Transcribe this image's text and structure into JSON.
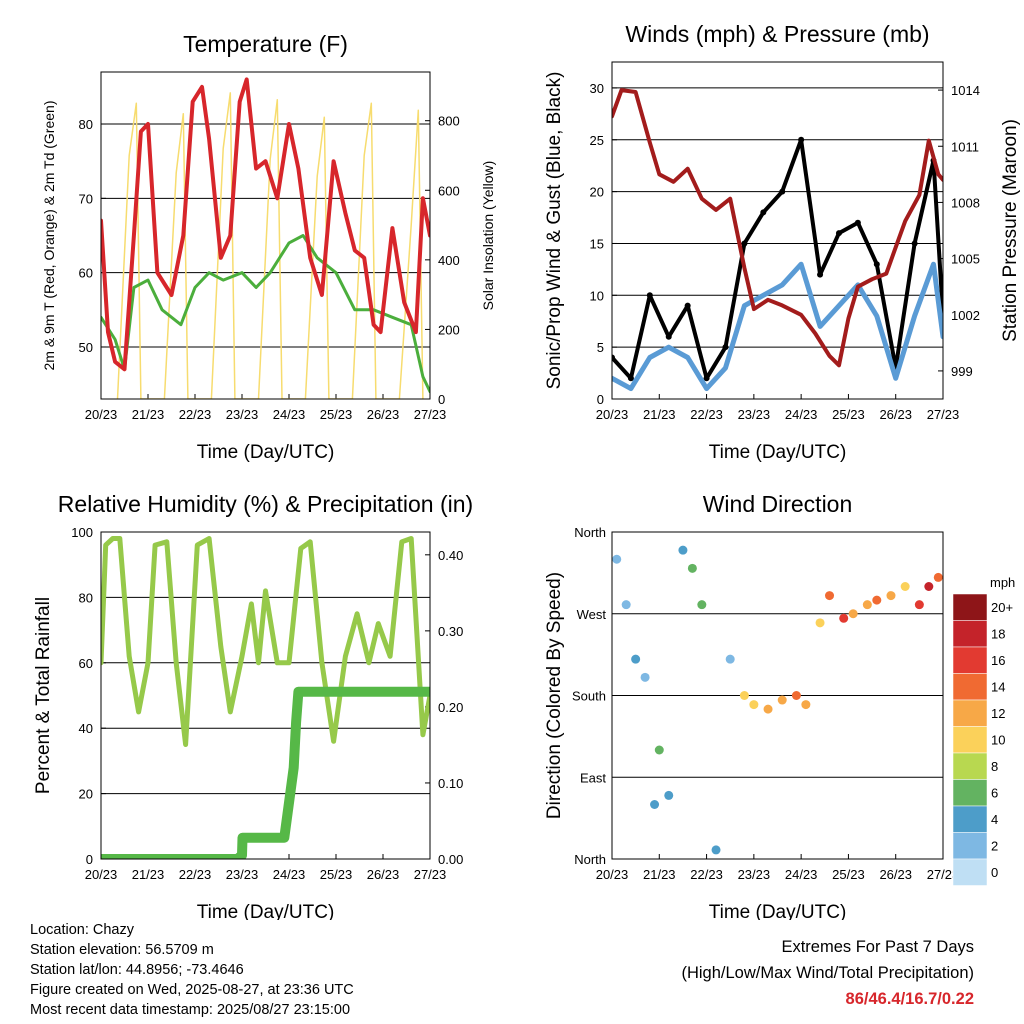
{
  "colors": {
    "temp_red": "#d7262b",
    "temp_orange": "#f4a142",
    "dewpoint_green": "#4bae3c",
    "solar_yellow": "#f7dc6f",
    "wind_blue": "#5a9bd5",
    "gust_black": "#000000",
    "pressure_maroon": "#a31c1c",
    "rh_green": "#96c94a",
    "precip_green": "#56b847",
    "extremes_red": "#d7262b"
  },
  "x_ticks": [
    "20/23",
    "21/23",
    "22/23",
    "23/23",
    "24/23",
    "25/23",
    "26/23",
    "27/23"
  ],
  "chart_data": [
    {
      "type": "line",
      "title": "Temperature (F)",
      "xlabel": "Time (Day/UTC)",
      "ylabel": "2m & 9m T (Red, Orange) & 2m Td (Green)",
      "y2label": "Solar Insolation (Yellow)",
      "ylim": [
        43,
        87
      ],
      "y2lim": [
        0,
        940
      ],
      "yticks": [
        50,
        60,
        70,
        80
      ],
      "y2ticks": [
        0,
        200,
        400,
        600,
        800
      ],
      "grid": true,
      "series": [
        {
          "key": "t2m",
          "color": "#d7262b",
          "x": [
            0,
            0.15,
            0.3,
            0.5,
            0.7,
            0.85,
            1.0,
            1.2,
            1.5,
            1.75,
            1.95,
            2.15,
            2.3,
            2.55,
            2.75,
            2.95,
            3.1,
            3.3,
            3.5,
            3.75,
            4.0,
            4.2,
            4.45,
            4.7,
            4.95,
            5.2,
            5.4,
            5.6,
            5.8,
            5.95,
            6.2,
            6.45,
            6.7,
            6.85,
            7.0
          ],
          "values": [
            67,
            52,
            48,
            47,
            65,
            79,
            80,
            60,
            57,
            65,
            83,
            85,
            78,
            62,
            65,
            83,
            86,
            74,
            75,
            70,
            80,
            74,
            62,
            57,
            75,
            68,
            63,
            62,
            53,
            52,
            66,
            56,
            52,
            70,
            65
          ]
        },
        {
          "key": "dewpoint",
          "color": "#4bae3c",
          "x": [
            0,
            0.3,
            0.5,
            0.7,
            1.0,
            1.3,
            1.7,
            2.0,
            2.3,
            2.6,
            3.0,
            3.3,
            3.6,
            4.0,
            4.3,
            4.6,
            5.0,
            5.4,
            5.8,
            6.2,
            6.6,
            6.85,
            7.0
          ],
          "values": [
            54,
            51,
            47,
            58,
            59,
            55,
            53,
            58,
            60,
            59,
            60,
            58,
            60,
            64,
            65,
            62,
            60,
            55,
            55,
            54,
            53,
            46,
            44
          ]
        },
        {
          "key": "solar",
          "axis": "y2",
          "color": "#f7dc6f",
          "x": [
            0.35,
            0.6,
            0.75,
            0.85,
            1.35,
            1.6,
            1.75,
            1.85,
            2.35,
            2.6,
            2.75,
            2.85,
            3.35,
            3.6,
            3.75,
            3.85,
            4.35,
            4.6,
            4.75,
            4.85,
            5.35,
            5.6,
            5.75,
            5.85,
            6.35,
            6.6,
            6.75,
            6.85
          ],
          "values": [
            0,
            700,
            850,
            0,
            0,
            650,
            820,
            0,
            0,
            720,
            880,
            0,
            0,
            690,
            860,
            0,
            0,
            640,
            810,
            0,
            0,
            700,
            850,
            0,
            0,
            500,
            830,
            0
          ]
        }
      ]
    },
    {
      "type": "line",
      "title": "Winds (mph) & Pressure (mb)",
      "xlabel": "Time (Day/UTC)",
      "ylabel": "Sonic/Prop Wind & Gust (Blue, Black)",
      "y2label": "Station Pressure (Maroon)",
      "ylim": [
        0,
        32.5
      ],
      "y2lim": [
        997.5,
        1015.5
      ],
      "yticks": [
        0,
        5,
        10,
        15,
        20,
        25,
        30
      ],
      "y2ticks": [
        999,
        1002,
        1005,
        1008,
        1011,
        1014
      ],
      "grid": true,
      "series": [
        {
          "key": "wind",
          "color": "#5a9bd5",
          "x": [
            0,
            0.4,
            0.8,
            1.2,
            1.6,
            2.0,
            2.4,
            2.8,
            3.2,
            3.6,
            4.0,
            4.4,
            4.8,
            5.2,
            5.6,
            6.0,
            6.4,
            6.8,
            7.0
          ],
          "values": [
            2,
            1,
            4,
            5,
            4,
            1,
            3,
            9,
            10,
            11,
            13,
            7,
            9,
            11,
            8,
            2,
            8,
            13,
            6
          ]
        },
        {
          "key": "gust",
          "color": "#000000",
          "x": [
            0,
            0.4,
            0.8,
            1.2,
            1.6,
            2.0,
            2.4,
            2.8,
            3.2,
            3.6,
            4.0,
            4.4,
            4.8,
            5.2,
            5.6,
            6.0,
            6.4,
            6.8,
            7.0
          ],
          "values": [
            4,
            2,
            10,
            6,
            9,
            2,
            5,
            15,
            18,
            20,
            25,
            12,
            16,
            17,
            13,
            3,
            15,
            23,
            8
          ]
        },
        {
          "key": "pressure",
          "axis": "y2",
          "color": "#a31c1c",
          "x": [
            0,
            0.2,
            0.5,
            0.8,
            1.0,
            1.3,
            1.6,
            1.9,
            2.2,
            2.5,
            2.8,
            3.0,
            3.3,
            3.6,
            4.0,
            4.3,
            4.6,
            4.8,
            5.0,
            5.2,
            5.5,
            5.8,
            6.0,
            6.2,
            6.5,
            6.7,
            6.9,
            7.0
          ],
          "values": [
            1012.6,
            1014,
            1013.9,
            1011.2,
            1009.5,
            1009.1,
            1009.8,
            1008.2,
            1007.6,
            1008.2,
            1004.5,
            1002.3,
            1002.8,
            1002.5,
            1002.0,
            1001.0,
            999.8,
            999.3,
            1001.8,
            1003.5,
            1003.9,
            1004.2,
            1005.6,
            1007.0,
            1008.4,
            1011.3,
            1009.5,
            1009.2
          ]
        }
      ]
    },
    {
      "type": "line",
      "title": "Relative Humidity (%) & Precipitation (in)",
      "xlabel": "Time (Day/UTC)",
      "ylabel": "Percent & Total Rainfall",
      "ylim": [
        0,
        100
      ],
      "y2lim": [
        0,
        0.43
      ],
      "yticks": [
        0,
        20,
        40,
        60,
        80,
        100
      ],
      "y2ticks": [
        "0.00",
        "0.10",
        "0.20",
        "0.30",
        "0.40"
      ],
      "grid": true,
      "series": [
        {
          "key": "rh",
          "color": "#96c94a",
          "x": [
            0,
            0.1,
            0.25,
            0.4,
            0.6,
            0.8,
            1.0,
            1.15,
            1.4,
            1.6,
            1.8,
            2.05,
            2.3,
            2.55,
            2.75,
            3.0,
            3.2,
            3.35,
            3.5,
            3.75,
            4.0,
            4.25,
            4.45,
            4.7,
            4.95,
            5.2,
            5.45,
            5.7,
            5.9,
            6.15,
            6.4,
            6.6,
            6.85,
            7.0
          ],
          "values": [
            60,
            96,
            98,
            98,
            62,
            45,
            60,
            96,
            97,
            60,
            35,
            96,
            98,
            65,
            45,
            62,
            78,
            60,
            82,
            60,
            60,
            95,
            97,
            60,
            36,
            62,
            75,
            60,
            72,
            62,
            97,
            98,
            38,
            50
          ]
        },
        {
          "key": "precip",
          "axis": "y2",
          "color": "#56b847",
          "x": [
            0,
            2.9,
            3.0,
            3.01,
            3.9,
            4.1,
            4.15,
            4.2,
            7.0
          ],
          "values": [
            0,
            0,
            0.005,
            0.028,
            0.028,
            0.12,
            0.18,
            0.22,
            0.22
          ]
        }
      ]
    },
    {
      "type": "scatter",
      "title": "Wind Direction",
      "xlabel": "Time (Day/UTC)",
      "ylabel": "Direction (Colored By Speed)",
      "ylim": [
        0,
        360
      ],
      "yticklabels": [
        "North",
        "East",
        "South",
        "West",
        "North"
      ],
      "grid": true,
      "legend": "right",
      "legend_title": "mph",
      "colorbar_labels": [
        "20+",
        "18",
        "16",
        "14",
        "12",
        "10",
        "8",
        "6",
        "4",
        "2",
        "0"
      ],
      "colorbar_colors": [
        "#8e1518",
        "#c4232a",
        "#e23a31",
        "#f06a32",
        "#f7a847",
        "#fbd15a",
        "#b8d850",
        "#63b361",
        "#4d9dc9",
        "#7eb8e3",
        "#bfdff4"
      ],
      "series": [
        {
          "key": "dir",
          "x": [
            0.1,
            0.3,
            0.5,
            0.7,
            0.9,
            1.0,
            1.2,
            1.5,
            1.7,
            1.9,
            2.2,
            2.5,
            2.8,
            3.0,
            3.3,
            3.6,
            3.9,
            4.1,
            4.4,
            4.6,
            4.9,
            5.1,
            5.4,
            5.6,
            5.9,
            6.2,
            6.5,
            6.7,
            6.9
          ],
          "y": [
            330,
            280,
            220,
            200,
            60,
            120,
            70,
            340,
            320,
            280,
            10,
            220,
            180,
            170,
            165,
            175,
            180,
            170,
            260,
            290,
            265,
            270,
            280,
            285,
            290,
            300,
            280,
            300,
            310
          ],
          "speed": [
            2,
            1,
            3,
            2,
            4,
            5,
            4,
            3,
            5,
            6,
            3,
            2,
            9,
            10,
            11,
            12,
            13,
            11,
            10,
            14,
            16,
            12,
            11,
            13,
            12,
            10,
            15,
            17,
            14
          ]
        }
      ]
    }
  ],
  "info": {
    "location": "Location: Chazy",
    "elevation": "Station elevation: 56.5709 m",
    "latlon": "Station lat/lon: 44.8956; -73.4646",
    "created": "Figure created on Wed, 2025-08-27, at 23:36 UTC",
    "recent": "Most recent data timestamp: 2025/08/27 23:15:00"
  },
  "extremes": {
    "line1": "Extremes For Past 7 Days",
    "line2": "(High/Low/Max Wind/Total Precipitation)",
    "values": "86/46.4/16.7/0.22"
  }
}
